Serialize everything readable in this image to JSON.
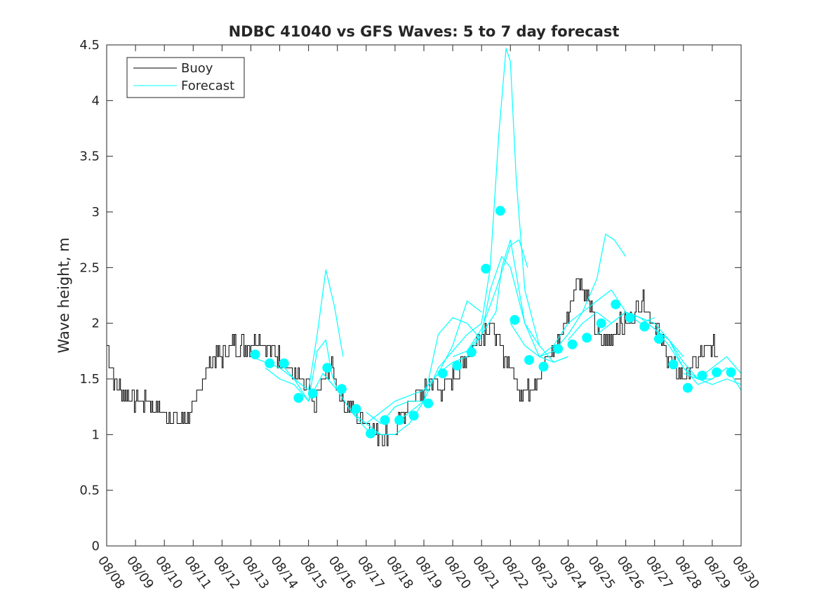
{
  "chart_data": {
    "type": "line",
    "title": "NDBC 41040 vs GFS Waves: 5 to 7 day forecast",
    "xlabel": "",
    "ylabel": "Wave height, m",
    "ylim": [
      0,
      4.5
    ],
    "xlim": [
      0,
      22
    ],
    "yticks": [
      0,
      0.5,
      1,
      1.5,
      2,
      2.5,
      3,
      3.5,
      4,
      4.5
    ],
    "ytick_labels": [
      "0",
      "0.5",
      "1",
      "1.5",
      "2",
      "2.5",
      "3",
      "3.5",
      "4",
      "4.5"
    ],
    "xtick_labels": [
      "08/08",
      "08/09",
      "08/10",
      "08/11",
      "08/12",
      "08/13",
      "08/14",
      "08/15",
      "08/16",
      "08/17",
      "08/18",
      "08/19",
      "08/20",
      "08/21",
      "08/22",
      "08/23",
      "08/24",
      "08/25",
      "08/26",
      "08/27",
      "08/28",
      "08/29",
      "08/30"
    ],
    "legend": {
      "position": "top-left",
      "entries": [
        "Buoy",
        "Forecast"
      ]
    },
    "colors": {
      "buoy": "#000000",
      "forecast": "#00ffff",
      "axis": "#262626"
    },
    "buoy": {
      "name": "Buoy",
      "x": [
        0,
        0.25,
        0.5,
        1,
        1.5,
        1.8,
        2,
        2.5,
        2.8,
        3,
        3.2,
        3.5,
        3.8,
        4,
        4.3,
        4.6,
        5,
        5.2,
        5.5,
        6,
        6.3,
        6.6,
        7,
        7.2,
        7.5,
        7.8,
        8,
        8.3,
        8.6,
        9,
        9.3,
        9.6,
        10,
        10.3,
        10.6,
        11,
        11.3,
        11.6,
        12,
        12.3,
        12.6,
        13,
        13.3,
        13.6,
        14,
        14.3,
        14.6,
        15,
        15.3,
        15.6,
        16,
        16.3,
        16.6,
        17,
        17.3,
        17.6,
        18,
        18.3,
        18.6,
        19,
        19.3,
        19.6,
        20,
        20.3,
        20.6,
        21,
        21.2
      ],
      "y": [
        1.8,
        1.5,
        1.4,
        1.3,
        1.3,
        1.2,
        1.2,
        1.1,
        1.2,
        1.2,
        1.4,
        1.6,
        1.7,
        1.7,
        1.8,
        1.8,
        1.8,
        1.9,
        1.8,
        1.7,
        1.6,
        1.5,
        1.4,
        1.25,
        1.5,
        1.6,
        1.4,
        1.25,
        1.2,
        1.1,
        1.0,
        1.0,
        1.0,
        1.2,
        1.3,
        1.4,
        1.5,
        1.4,
        1.5,
        1.6,
        1.75,
        1.9,
        2.0,
        1.8,
        1.6,
        1.4,
        1.4,
        1.55,
        1.7,
        1.8,
        2.1,
        2.4,
        2.3,
        1.9,
        1.8,
        1.95,
        2.0,
        2.1,
        2.2,
        2.0,
        1.8,
        1.6,
        1.55,
        1.6,
        1.7,
        1.8,
        1.7
      ],
      "noise": 0.08
    },
    "forecast_series": [
      {
        "x": [
          5.0,
          5.5,
          6.0,
          6.5,
          7.0,
          7.3,
          7.6,
          7.9,
          8.2
        ],
        "y": [
          1.7,
          1.65,
          1.6,
          1.5,
          1.4,
          1.9,
          2.48,
          2.15,
          1.7
        ]
      },
      {
        "x": [
          5.5,
          6.0,
          6.5,
          7.0,
          7.3,
          7.6,
          7.8,
          8.0
        ],
        "y": [
          1.6,
          1.5,
          1.45,
          1.3,
          1.75,
          1.85,
          1.55,
          1.4
        ]
      },
      {
        "x": [
          6.0,
          6.5,
          7.0,
          7.5,
          8.0,
          8.5,
          9.0,
          9.5,
          10.0
        ],
        "y": [
          1.65,
          1.5,
          1.3,
          1.55,
          1.4,
          1.2,
          1.05,
          1.0,
          1.0
        ]
      },
      {
        "x": [
          7.5,
          8.0,
          8.5,
          9.0,
          9.5,
          10.0,
          10.5,
          11.0
        ],
        "y": [
          1.55,
          1.4,
          1.2,
          1.1,
          1.0,
          1.0,
          1.1,
          1.3
        ]
      },
      {
        "x": [
          8.5,
          9.0,
          9.5,
          10.0,
          10.5,
          11.0,
          11.5,
          12.0,
          12.5,
          13.0
        ],
        "y": [
          1.2,
          1.1,
          1.2,
          1.3,
          1.35,
          1.4,
          1.55,
          1.8,
          2.2,
          2.1
        ]
      },
      {
        "x": [
          9.0,
          9.5,
          10.0,
          10.5,
          11.0,
          11.5,
          12.0,
          12.5,
          13.0
        ],
        "y": [
          1.2,
          1.1,
          1.25,
          1.3,
          1.3,
          1.9,
          2.05,
          2.0,
          1.85
        ]
      },
      {
        "x": [
          10.0,
          10.5,
          11.0,
          11.5,
          12.0,
          12.5,
          13.0,
          13.3,
          13.6,
          13.85,
          14.0,
          14.2,
          14.5,
          15.0
        ],
        "y": [
          1.1,
          1.2,
          1.3,
          1.6,
          1.75,
          1.9,
          2.0,
          2.5,
          3.7,
          4.47,
          4.35,
          3.3,
          2.3,
          1.8
        ]
      },
      {
        "x": [
          11.0,
          11.5,
          12.0,
          12.5,
          13.0,
          13.3,
          13.7,
          14.0,
          14.5,
          15.0,
          15.5,
          16.0
        ],
        "y": [
          1.4,
          1.55,
          1.65,
          1.7,
          1.9,
          2.3,
          2.6,
          2.5,
          2.0,
          1.7,
          1.65,
          1.7
        ]
      },
      {
        "x": [
          12.0,
          12.5,
          13.0,
          13.5,
          13.7,
          14.0,
          14.3,
          14.5,
          15.0,
          15.5,
          16.0
        ],
        "y": [
          1.7,
          1.75,
          1.9,
          2.1,
          2.5,
          2.75,
          2.3,
          2.0,
          1.8,
          1.65,
          1.7
        ]
      },
      {
        "x": [
          12.5,
          13.0,
          13.5,
          14.0,
          14.3,
          14.6
        ],
        "y": [
          1.75,
          1.95,
          2.3,
          2.7,
          2.75,
          2.5
        ]
      },
      {
        "x": [
          14.0,
          14.5,
          15.0,
          15.5,
          16.0,
          16.5,
          17.0,
          17.3,
          17.6,
          18.0
        ],
        "y": [
          2.0,
          1.8,
          1.7,
          1.75,
          1.9,
          2.1,
          2.4,
          2.8,
          2.75,
          2.6
        ]
      },
      {
        "x": [
          15.0,
          15.5,
          16.0,
          16.5,
          17.0,
          17.5,
          18.0,
          18.5,
          19.0
        ],
        "y": [
          1.7,
          1.8,
          2.0,
          2.1,
          2.2,
          2.3,
          2.1,
          2.0,
          2.05
        ]
      },
      {
        "x": [
          16.0,
          16.5,
          17.0,
          17.5,
          18.0,
          18.5,
          19.0,
          19.5,
          20.0
        ],
        "y": [
          1.85,
          2.0,
          2.1,
          2.0,
          2.1,
          2.05,
          1.95,
          1.85,
          1.7
        ]
      },
      {
        "x": [
          17.0,
          17.5,
          18.0,
          18.5,
          19.0,
          19.5,
          20.0,
          20.5,
          21.0
        ],
        "y": [
          1.9,
          2.0,
          2.1,
          2.05,
          2.0,
          1.85,
          1.65,
          1.5,
          1.5
        ]
      },
      {
        "x": [
          18.0,
          18.5,
          19.0,
          19.5,
          20.0,
          20.5,
          21.0,
          21.5,
          22.0
        ],
        "y": [
          2.1,
          2.05,
          1.95,
          1.8,
          1.6,
          1.5,
          1.45,
          1.5,
          1.45
        ]
      },
      {
        "x": [
          19.0,
          19.5,
          20.0,
          20.5,
          21.0,
          21.5,
          22.0
        ],
        "y": [
          1.95,
          1.85,
          1.6,
          1.45,
          1.5,
          1.6,
          1.4
        ]
      },
      {
        "x": [
          20.0,
          20.5,
          21.0,
          21.5,
          22.0
        ],
        "y": [
          1.55,
          1.5,
          1.6,
          1.7,
          1.55
        ]
      }
    ],
    "forecast_points": {
      "x": [
        5.15,
        5.65,
        6.15,
        6.65,
        7.15,
        7.65,
        8.15,
        8.65,
        9.15,
        9.65,
        10.15,
        10.65,
        11.15,
        11.65,
        12.15,
        12.65,
        13.15,
        13.65,
        14.15,
        14.65,
        15.15,
        15.65,
        16.15,
        16.65,
        17.15,
        17.65,
        18.15,
        18.65,
        19.15,
        19.65,
        20.15,
        20.65,
        21.15,
        21.65
      ],
      "y": [
        1.72,
        1.64,
        1.64,
        1.33,
        1.37,
        1.6,
        1.41,
        1.23,
        1.01,
        1.13,
        1.13,
        1.17,
        1.28,
        1.55,
        1.62,
        1.74,
        2.49,
        3.01,
        2.03,
        1.67,
        1.61,
        1.77,
        1.81,
        1.87,
        2.0,
        2.17,
        2.05,
        1.97,
        1.86,
        1.63,
        1.42,
        1.53,
        1.56,
        1.56
      ]
    }
  }
}
